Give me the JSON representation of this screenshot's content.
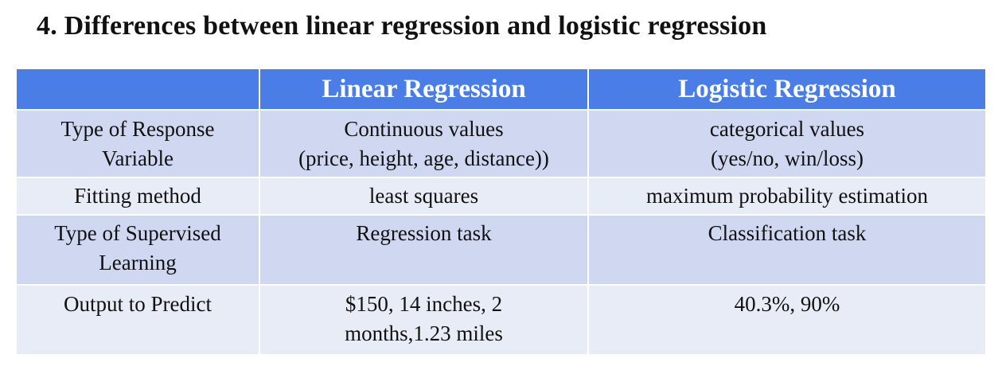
{
  "heading": "4. Differences between linear regression and logistic regression",
  "table": {
    "headers": [
      "",
      "Linear Regression",
      "Logistic Regression"
    ],
    "rows": [
      {
        "label": [
          "Type of Response",
          "Variable"
        ],
        "linear": [
          "Continuous values",
          "(price, height, age, distance))"
        ],
        "logistic": [
          "categorical values",
          "(yes/no, win/loss)"
        ]
      },
      {
        "label": [
          "Fitting method"
        ],
        "linear": [
          "least squares"
        ],
        "logistic": [
          "maximum probability estimation"
        ]
      },
      {
        "label": [
          "Type of Supervised",
          "Learning"
        ],
        "linear": [
          "Regression task"
        ],
        "logistic": [
          "Classification task"
        ]
      },
      {
        "label": [
          "Output to Predict"
        ],
        "linear": [
          "$150, 14 inches, 2",
          "months,1.23 miles"
        ],
        "logistic": [
          "40.3%, 90%"
        ]
      }
    ]
  },
  "colors": {
    "header_bg": "#4a7ee6",
    "row_dark": "#cfd8f0",
    "row_light": "#e8ecf7"
  }
}
